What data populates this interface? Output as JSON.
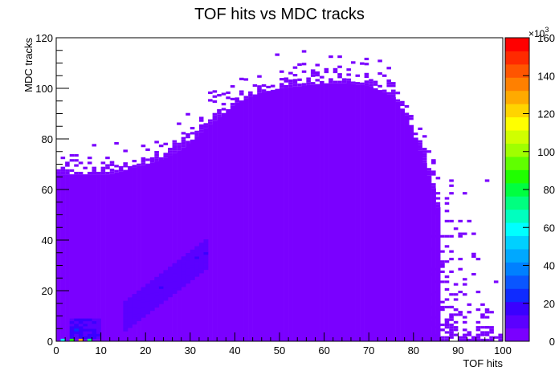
{
  "chart_data": {
    "type": "heatmap",
    "title": "TOF hits vs MDC tracks",
    "xlabel": "TOF hits",
    "ylabel": "MDC tracks",
    "xlim": [
      0,
      100
    ],
    "ylim": [
      0,
      120
    ],
    "zlim": [
      0,
      160
    ],
    "z_multiplier_label": "×10",
    "z_multiplier_exponent": "3",
    "x_ticks": [
      0,
      10,
      20,
      30,
      40,
      50,
      60,
      70,
      80,
      90,
      100
    ],
    "y_ticks": [
      0,
      20,
      40,
      60,
      80,
      100,
      120
    ],
    "z_ticks": [
      0,
      20,
      40,
      60,
      80,
      100,
      120,
      140,
      160
    ],
    "palette": [
      "#7a00ff",
      "#5b00ff",
      "#3a00ff",
      "#0f2bff",
      "#0a56ff",
      "#0080ff",
      "#00a8ff",
      "#00d0ff",
      "#00ffff",
      "#00ffbf",
      "#00ff80",
      "#00ff40",
      "#20ff00",
      "#60ff00",
      "#a0ff00",
      "#d0ff00",
      "#ffff00",
      "#ffd400",
      "#ffaa00",
      "#ff8000",
      "#ff5500",
      "#ff2a00",
      "#ff0000"
    ],
    "dense_region": {
      "description_of_support": "approximate extent of filled bins in data units",
      "upper_edge": [
        [
          0,
          66
        ],
        [
          12,
          66
        ],
        [
          16,
          68
        ],
        [
          20,
          70
        ],
        [
          24,
          72
        ],
        [
          28,
          76
        ],
        [
          32,
          82
        ],
        [
          36,
          88
        ],
        [
          40,
          94
        ],
        [
          45,
          98
        ],
        [
          50,
          100
        ],
        [
          55,
          101
        ],
        [
          60,
          102
        ],
        [
          65,
          102
        ],
        [
          70,
          101
        ],
        [
          73,
          99
        ],
        [
          76,
          96
        ],
        [
          79,
          88
        ],
        [
          81,
          78
        ],
        [
          83,
          68
        ],
        [
          85,
          58
        ],
        [
          86,
          48
        ],
        [
          86,
          35
        ],
        [
          85,
          20
        ],
        [
          83,
          8
        ],
        [
          82,
          0
        ]
      ],
      "sparse_extent_x": 100
    },
    "hotspots": [
      {
        "x": 4,
        "y": 4,
        "z": 25
      },
      {
        "x": 22,
        "y": 24,
        "z": 10
      },
      {
        "x": 1,
        "y": 0,
        "z": 60
      },
      {
        "x": 3,
        "y": 0,
        "z": 90
      },
      {
        "x": 5,
        "y": 0,
        "z": 130
      },
      {
        "x": 7,
        "y": 0,
        "z": 70
      }
    ]
  }
}
